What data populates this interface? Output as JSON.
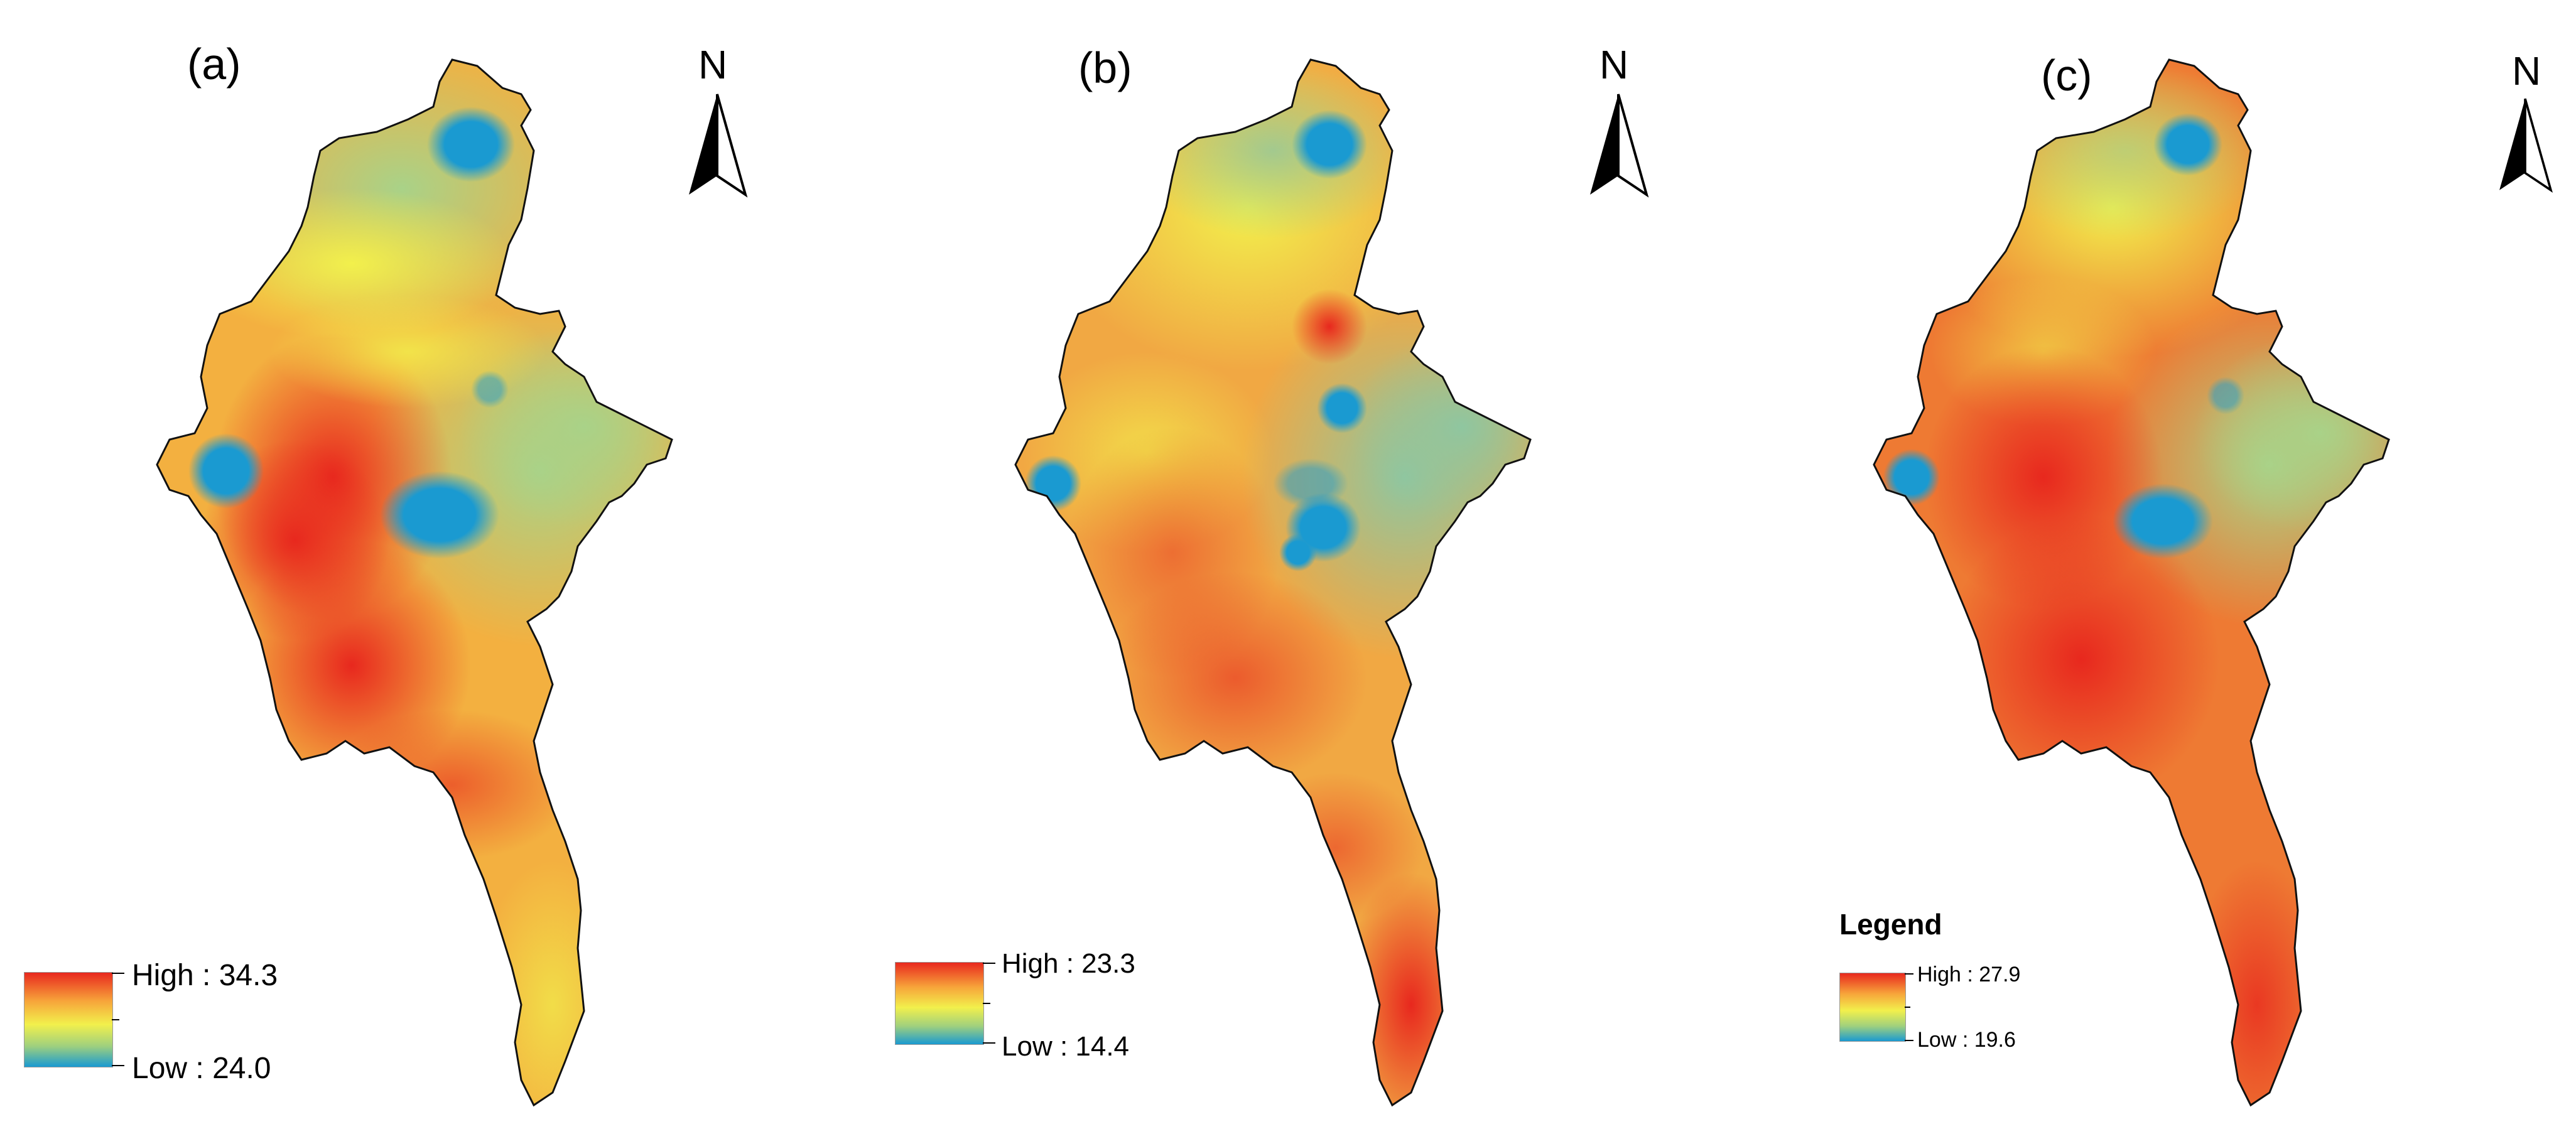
{
  "figure": {
    "panels": [
      {
        "label": "(a)",
        "north_label": "N",
        "legend_title": "",
        "high_text": "High : 34.3",
        "low_text": "Low : 24.0"
      },
      {
        "label": "(b)",
        "north_label": "N",
        "legend_title": "",
        "high_text": "High : 23.3",
        "low_text": "Low : 14.4"
      },
      {
        "label": "(c)",
        "north_label": "N",
        "legend_title": "Legend",
        "high_text": "High : 27.9",
        "low_text": "Low : 19.6"
      }
    ],
    "color_ramp": [
      "#e8281e",
      "#f7a43a",
      "#f2f04c",
      "#9fd07e",
      "#1a9ad1"
    ]
  }
}
